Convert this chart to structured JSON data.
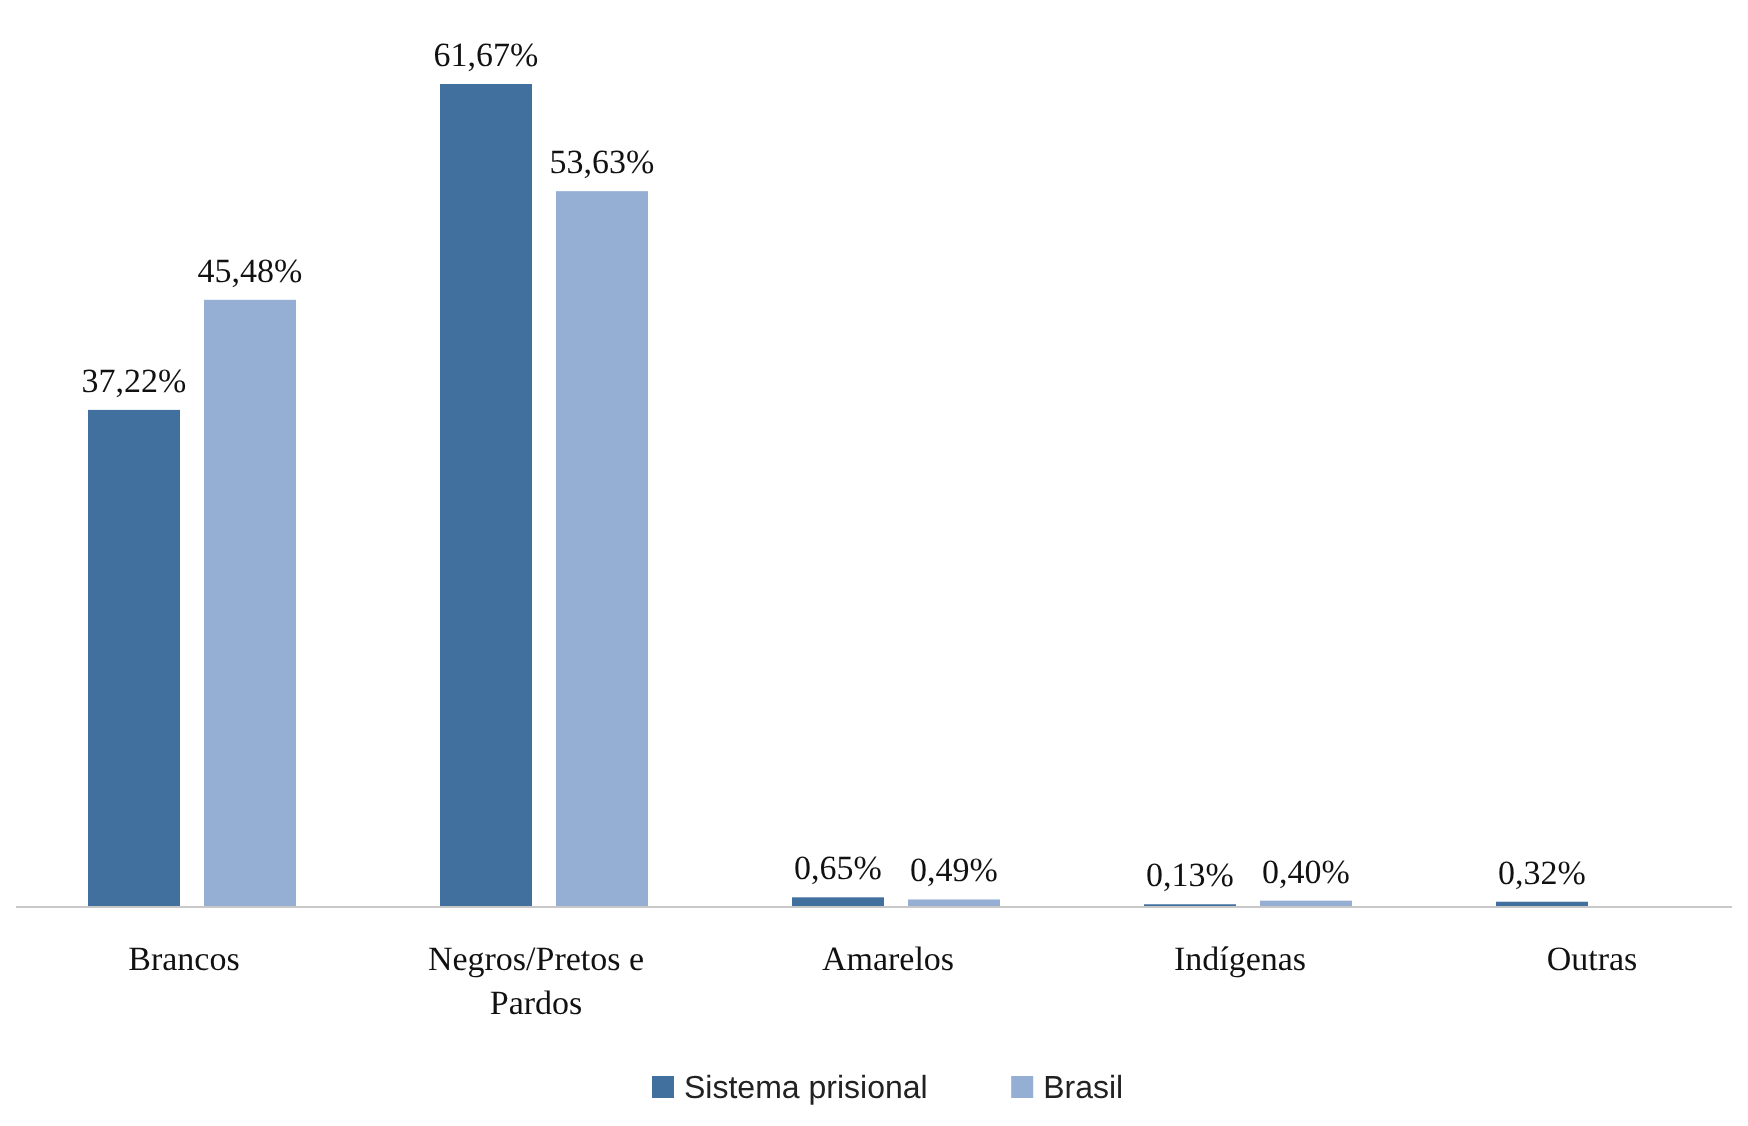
{
  "chart_data": {
    "type": "bar",
    "categories": [
      "Brancos",
      "Negros/Pretos e Pardos",
      "Amarelos",
      "Indígenas",
      "Outras"
    ],
    "series": [
      {
        "name": "Sistema prisional",
        "color": "#41709f",
        "values": [
          37.22,
          61.67,
          0.65,
          0.13,
          0.32
        ],
        "value_labels": [
          "37,22%",
          "61,67%",
          "0,65%",
          "0,13%",
          "0,32%"
        ]
      },
      {
        "name": "Brasil",
        "color": "#95aed4",
        "values": [
          45.48,
          53.63,
          0.49,
          0.4,
          null
        ],
        "value_labels": [
          "45,48%",
          "53,63%",
          "0,49%",
          "0,40%",
          null
        ]
      }
    ],
    "legend": "bottom",
    "grid": false
  }
}
